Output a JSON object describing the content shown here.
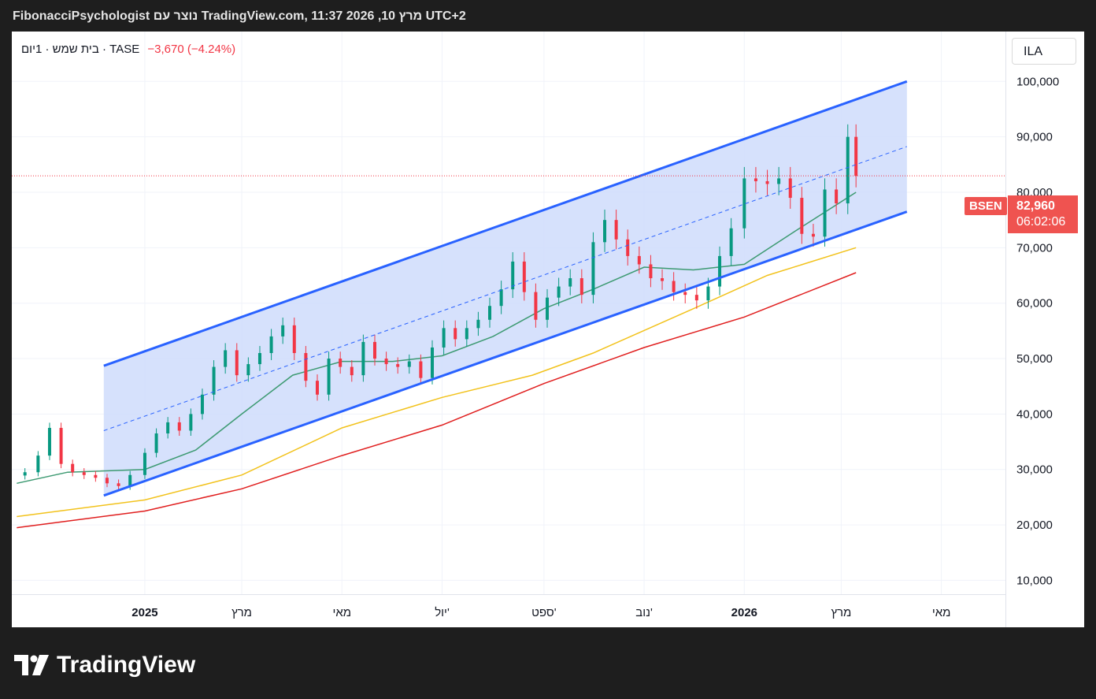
{
  "header": {
    "title": "FibonacciPsychologist נוצר עם TradingView.com, 11:37 2026 ,10 מרץ UTC+2"
  },
  "legend": {
    "symbol_text": "בית שמש · 1יום · TASE",
    "change": "−3,670 (−4.24%)"
  },
  "currency": "ILA",
  "badge": {
    "ticker": "BSEN",
    "price": "82,960",
    "countdown": "06:02:06"
  },
  "brand": {
    "logo": "tradingview-logo-icon",
    "name": "TradingView"
  },
  "colors": {
    "up": "#089981",
    "down": "#f23645",
    "channel": "#2962ff",
    "channel_fill": "#cfdcfb",
    "ma_green": "#3d9a72",
    "ma_yellow": "#f2c21b",
    "ma_red": "#e01e1e"
  },
  "chart_data": {
    "type": "candlestick",
    "ylim": [
      7500,
      109000
    ],
    "y_ticks": [
      "100,000",
      "90,000",
      "80,000",
      "70,000",
      "60,000",
      "50,000",
      "40,000",
      "30,000",
      "20,000",
      "10,000"
    ],
    "y_tick_values": [
      100000,
      90000,
      80000,
      70000,
      60000,
      50000,
      40000,
      30000,
      20000,
      10000
    ],
    "x_ticks": [
      {
        "label": "2025",
        "date": "2025-01-01",
        "bold": true
      },
      {
        "label": "מרץ",
        "date": "2025-03-01",
        "bold": false
      },
      {
        "label": "מאי",
        "date": "2025-05-01",
        "bold": false
      },
      {
        "label": "יול'",
        "date": "2025-07-01",
        "bold": false
      },
      {
        "label": "ספט'",
        "date": "2025-09-01",
        "bold": false
      },
      {
        "label": "נוב'",
        "date": "2025-11-01",
        "bold": false
      },
      {
        "label": "2026",
        "date": "2026-01-01",
        "bold": true
      },
      {
        "label": "מרץ",
        "date": "2026-03-01",
        "bold": false
      },
      {
        "label": "מאי",
        "date": "2026-05-01",
        "bold": false
      }
    ],
    "last_price": 82960,
    "series_close": [
      {
        "date": "2024-10-20",
        "close": 29500
      },
      {
        "date": "2024-10-28",
        "close": 32500
      },
      {
        "date": "2024-11-04",
        "close": 37500
      },
      {
        "date": "2024-11-11",
        "close": 31000
      },
      {
        "date": "2024-11-18",
        "close": 29500
      },
      {
        "date": "2024-11-25",
        "close": 29000
      },
      {
        "date": "2024-12-02",
        "close": 28500
      },
      {
        "date": "2024-12-09",
        "close": 27500
      },
      {
        "date": "2024-12-16",
        "close": 27000
      },
      {
        "date": "2024-12-23",
        "close": 29000
      },
      {
        "date": "2025-01-01",
        "close": 33000
      },
      {
        "date": "2025-01-08",
        "close": 36500
      },
      {
        "date": "2025-01-15",
        "close": 38500
      },
      {
        "date": "2025-01-22",
        "close": 37000
      },
      {
        "date": "2025-01-29",
        "close": 40000
      },
      {
        "date": "2025-02-05",
        "close": 43500
      },
      {
        "date": "2025-02-12",
        "close": 48500
      },
      {
        "date": "2025-02-19",
        "close": 51500
      },
      {
        "date": "2025-02-26",
        "close": 47000
      },
      {
        "date": "2025-03-05",
        "close": 49000
      },
      {
        "date": "2025-03-12",
        "close": 51000
      },
      {
        "date": "2025-03-19",
        "close": 54000
      },
      {
        "date": "2025-03-26",
        "close": 56000
      },
      {
        "date": "2025-04-02",
        "close": 51000
      },
      {
        "date": "2025-04-09",
        "close": 46000
      },
      {
        "date": "2025-04-16",
        "close": 43500
      },
      {
        "date": "2025-04-23",
        "close": 50000
      },
      {
        "date": "2025-04-30",
        "close": 48500
      },
      {
        "date": "2025-05-07",
        "close": 47000
      },
      {
        "date": "2025-05-14",
        "close": 53000
      },
      {
        "date": "2025-05-21",
        "close": 50000
      },
      {
        "date": "2025-05-28",
        "close": 49000
      },
      {
        "date": "2025-06-04",
        "close": 48500
      },
      {
        "date": "2025-06-11",
        "close": 49500
      },
      {
        "date": "2025-06-18",
        "close": 46500
      },
      {
        "date": "2025-06-25",
        "close": 52000
      },
      {
        "date": "2025-07-02",
        "close": 55500
      },
      {
        "date": "2025-07-09",
        "close": 53500
      },
      {
        "date": "2025-07-16",
        "close": 55500
      },
      {
        "date": "2025-07-23",
        "close": 57000
      },
      {
        "date": "2025-07-30",
        "close": 59500
      },
      {
        "date": "2025-08-06",
        "close": 62500
      },
      {
        "date": "2025-08-13",
        "close": 67500
      },
      {
        "date": "2025-08-20",
        "close": 62000
      },
      {
        "date": "2025-08-27",
        "close": 57000
      },
      {
        "date": "2025-09-03",
        "close": 61000
      },
      {
        "date": "2025-09-10",
        "close": 63000
      },
      {
        "date": "2025-09-17",
        "close": 64500
      },
      {
        "date": "2025-09-24",
        "close": 61500
      },
      {
        "date": "2025-10-01",
        "close": 71000
      },
      {
        "date": "2025-10-08",
        "close": 75000
      },
      {
        "date": "2025-10-15",
        "close": 71500
      },
      {
        "date": "2025-10-22",
        "close": 68500
      },
      {
        "date": "2025-10-29",
        "close": 67000
      },
      {
        "date": "2025-11-05",
        "close": 64500
      },
      {
        "date": "2025-11-12",
        "close": 64000
      },
      {
        "date": "2025-11-19",
        "close": 62000
      },
      {
        "date": "2025-11-26",
        "close": 61500
      },
      {
        "date": "2025-12-03",
        "close": 60500
      },
      {
        "date": "2025-12-10",
        "close": 63000
      },
      {
        "date": "2025-12-17",
        "close": 68500
      },
      {
        "date": "2025-12-24",
        "close": 73500
      },
      {
        "date": "2026-01-01",
        "close": 82500
      },
      {
        "date": "2026-01-08",
        "close": 82000
      },
      {
        "date": "2026-01-15",
        "close": 81500
      },
      {
        "date": "2026-01-22",
        "close": 82500
      },
      {
        "date": "2026-01-29",
        "close": 79000
      },
      {
        "date": "2026-02-05",
        "close": 72500
      },
      {
        "date": "2026-02-12",
        "close": 72000
      },
      {
        "date": "2026-02-19",
        "close": 80500
      },
      {
        "date": "2026-02-26",
        "close": 78000
      },
      {
        "date": "2026-03-05",
        "close": 90000
      },
      {
        "date": "2026-03-10",
        "close": 82960
      }
    ],
    "channel": {
      "upper": [
        {
          "date": "2024-12-07",
          "value": 48700
        },
        {
          "date": "2026-04-10",
          "value": 100000
        }
      ],
      "lower": [
        {
          "date": "2024-12-07",
          "value": 25300
        },
        {
          "date": "2026-04-10",
          "value": 76500
        }
      ],
      "median": [
        {
          "date": "2024-12-07",
          "value": 37000
        },
        {
          "date": "2026-04-10",
          "value": 88250
        }
      ]
    },
    "moving_averages": [
      {
        "color": "#3d9a72",
        "points": [
          {
            "date": "2024-10-15",
            "value": 27500
          },
          {
            "date": "2024-11-15",
            "value": 29500
          },
          {
            "date": "2025-01-01",
            "value": 30000
          },
          {
            "date": "2025-02-01",
            "value": 33500
          },
          {
            "date": "2025-03-01",
            "value": 40000
          },
          {
            "date": "2025-04-01",
            "value": 47000
          },
          {
            "date": "2025-05-01",
            "value": 49500
          },
          {
            "date": "2025-06-01",
            "value": 49500
          },
          {
            "date": "2025-07-01",
            "value": 50500
          },
          {
            "date": "2025-08-01",
            "value": 54000
          },
          {
            "date": "2025-09-01",
            "value": 59000
          },
          {
            "date": "2025-10-01",
            "value": 62500
          },
          {
            "date": "2025-11-01",
            "value": 66500
          },
          {
            "date": "2025-12-01",
            "value": 66000
          },
          {
            "date": "2026-01-01",
            "value": 67000
          },
          {
            "date": "2026-02-01",
            "value": 73000
          },
          {
            "date": "2026-03-10",
            "value": 80000
          }
        ]
      },
      {
        "color": "#f2c21b",
        "points": [
          {
            "date": "2024-10-15",
            "value": 21500
          },
          {
            "date": "2025-01-01",
            "value": 24500
          },
          {
            "date": "2025-03-01",
            "value": 29000
          },
          {
            "date": "2025-05-01",
            "value": 37500
          },
          {
            "date": "2025-07-01",
            "value": 43000
          },
          {
            "date": "2025-08-25",
            "value": 47000
          },
          {
            "date": "2025-10-01",
            "value": 51000
          },
          {
            "date": "2025-12-01",
            "value": 59000
          },
          {
            "date": "2026-01-15",
            "value": 65000
          },
          {
            "date": "2026-03-10",
            "value": 70000
          }
        ]
      },
      {
        "color": "#e01e1e",
        "points": [
          {
            "date": "2024-10-15",
            "value": 19500
          },
          {
            "date": "2025-01-01",
            "value": 22500
          },
          {
            "date": "2025-03-01",
            "value": 26500
          },
          {
            "date": "2025-05-01",
            "value": 32500
          },
          {
            "date": "2025-07-01",
            "value": 38000
          },
          {
            "date": "2025-09-01",
            "value": 45500
          },
          {
            "date": "2025-11-01",
            "value": 52000
          },
          {
            "date": "2026-01-01",
            "value": 57500
          },
          {
            "date": "2026-03-10",
            "value": 65500
          }
        ]
      }
    ]
  }
}
